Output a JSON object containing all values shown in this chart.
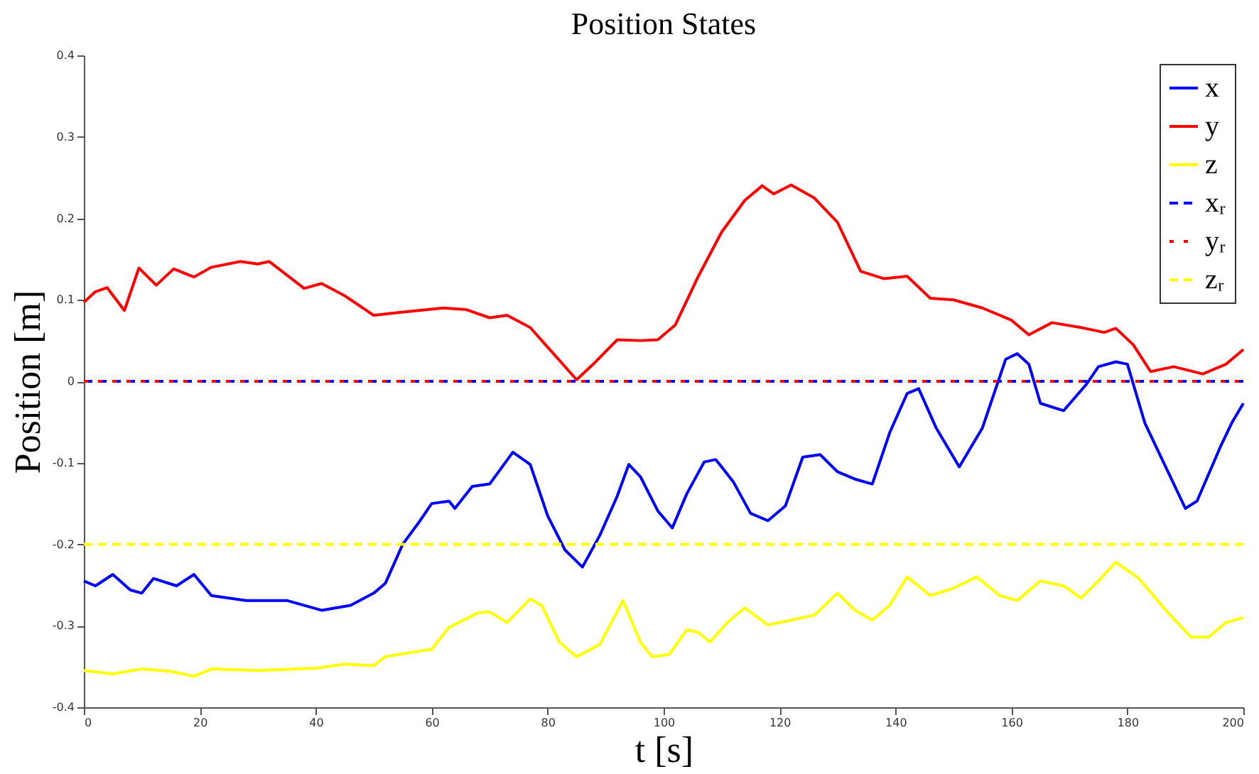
{
  "chart_data": {
    "type": "line",
    "title": "Position States",
    "xlabel": "t [s]",
    "ylabel": "Position [m]",
    "xlim": [
      0,
      200
    ],
    "xticks": [
      0,
      20,
      40,
      60,
      80,
      100,
      120,
      140,
      160,
      180,
      200
    ],
    "ylim": [
      -0.4,
      0.4
    ],
    "yticks": [
      -0.4,
      -0.3,
      -0.2,
      -0.1,
      0,
      0.1,
      0.2,
      0.3,
      0.4
    ],
    "legend": "top right",
    "series": [
      {
        "name": "x",
        "color": "#0000ff",
        "line_style": "solid",
        "x": [
          0,
          2,
          5,
          8,
          10,
          12,
          16,
          19,
          22,
          28,
          35,
          41,
          46,
          50,
          52,
          55,
          58,
          60,
          63,
          64,
          67,
          70,
          74,
          77,
          80,
          83,
          86,
          89,
          92,
          94,
          96,
          99,
          101.5,
          104,
          107,
          109,
          112,
          115,
          118,
          121,
          124,
          127,
          130,
          133,
          136,
          139,
          142,
          144,
          147,
          151,
          155,
          159,
          161,
          163,
          165,
          169,
          173,
          175,
          178,
          180,
          183,
          187,
          190,
          192,
          196,
          198,
          200
        ],
        "values": [
          -0.245,
          -0.251,
          -0.237,
          -0.256,
          -0.26,
          -0.242,
          -0.251,
          -0.237,
          -0.263,
          -0.269,
          -0.269,
          -0.281,
          -0.275,
          -0.26,
          -0.248,
          -0.2,
          -0.171,
          -0.15,
          -0.147,
          -0.156,
          -0.129,
          -0.126,
          -0.087,
          -0.102,
          -0.165,
          -0.207,
          -0.228,
          -0.189,
          -0.141,
          -0.102,
          -0.117,
          -0.159,
          -0.18,
          -0.138,
          -0.099,
          -0.096,
          -0.123,
          -0.162,
          -0.171,
          -0.153,
          -0.093,
          -0.09,
          -0.111,
          -0.12,
          -0.126,
          -0.063,
          -0.015,
          -0.009,
          -0.057,
          -0.105,
          -0.057,
          0.027,
          0.034,
          0.021,
          -0.027,
          -0.036,
          -0.003,
          0.018,
          0.024,
          0.021,
          -0.051,
          -0.111,
          -0.156,
          -0.147,
          -0.081,
          -0.051,
          -0.027
        ]
      },
      {
        "name": "y",
        "color": "#ff0000",
        "line_style": "solid",
        "x": [
          0,
          2,
          4,
          7,
          9.5,
          12.5,
          15.5,
          19,
          22,
          27,
          30,
          32,
          38,
          41,
          45,
          50,
          55,
          62,
          66,
          70,
          73,
          77,
          80,
          85,
          88,
          92,
          96,
          99,
          102,
          106,
          110,
          114,
          117,
          119,
          122,
          126,
          130,
          134,
          138,
          142,
          146,
          150,
          155,
          160,
          163,
          167,
          172,
          176,
          178,
          181,
          184,
          188,
          193,
          197,
          200
        ],
        "values": [
          0.097,
          0.11,
          0.115,
          0.087,
          0.139,
          0.118,
          0.138,
          0.128,
          0.14,
          0.147,
          0.144,
          0.147,
          0.114,
          0.12,
          0.105,
          0.081,
          0.085,
          0.09,
          0.088,
          0.078,
          0.081,
          0.066,
          0.042,
          0.002,
          0.022,
          0.051,
          0.05,
          0.051,
          0.069,
          0.129,
          0.183,
          0.222,
          0.24,
          0.23,
          0.241,
          0.225,
          0.195,
          0.135,
          0.126,
          0.129,
          0.102,
          0.1,
          0.09,
          0.075,
          0.057,
          0.072,
          0.066,
          0.06,
          0.065,
          0.045,
          0.012,
          0.018,
          0.009,
          0.021,
          0.039
        ]
      },
      {
        "name": "z",
        "color": "#ffff00",
        "line_style": "solid",
        "x": [
          0,
          5,
          10,
          15,
          19,
          22,
          30,
          40,
          45,
          50,
          52,
          57,
          60,
          63,
          68,
          70,
          73,
          77,
          79,
          82,
          85,
          89,
          93,
          96,
          98,
          101,
          104,
          106,
          108,
          111,
          114,
          118,
          122,
          126,
          130,
          133,
          136,
          139,
          142,
          146,
          150,
          154,
          158,
          161,
          165,
          169,
          172,
          175,
          178,
          182,
          187,
          191,
          194,
          197,
          200
        ],
        "values": [
          -0.355,
          -0.359,
          -0.353,
          -0.356,
          -0.362,
          -0.353,
          -0.355,
          -0.352,
          -0.347,
          -0.349,
          -0.338,
          -0.332,
          -0.329,
          -0.302,
          -0.284,
          -0.283,
          -0.296,
          -0.267,
          -0.275,
          -0.32,
          -0.338,
          -0.323,
          -0.269,
          -0.32,
          -0.338,
          -0.335,
          -0.305,
          -0.308,
          -0.32,
          -0.296,
          -0.278,
          -0.299,
          -0.293,
          -0.287,
          -0.26,
          -0.281,
          -0.293,
          -0.275,
          -0.24,
          -0.263,
          -0.254,
          -0.24,
          -0.263,
          -0.269,
          -0.245,
          -0.251,
          -0.266,
          -0.245,
          -0.222,
          -0.242,
          -0.284,
          -0.314,
          -0.314,
          -0.296,
          -0.29
        ]
      },
      {
        "name": "xᵣ",
        "color": "#0000ff",
        "line_style": "dashed",
        "x": [
          0,
          200
        ],
        "values": [
          0,
          0
        ]
      },
      {
        "name": "yᵣ",
        "color": "#ff0000",
        "line_style": "dashed",
        "x": [
          0,
          200
        ],
        "values": [
          0,
          0
        ]
      },
      {
        "name": "zᵣ",
        "color": "#ffff00",
        "line_style": "dashed",
        "x": [
          0,
          200
        ],
        "values": [
          -0.2,
          -0.2
        ]
      }
    ]
  }
}
